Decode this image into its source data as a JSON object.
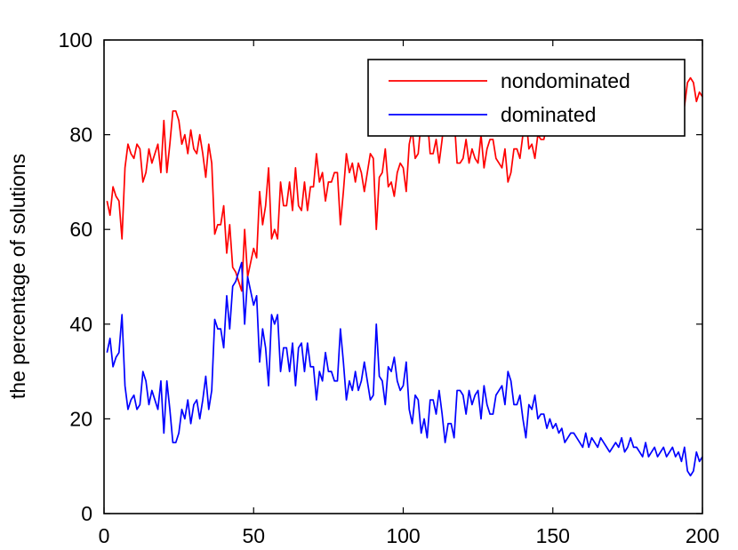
{
  "chart_data": {
    "type": "line",
    "title": "",
    "xlabel": "",
    "ylabel": "the percentage of solutions",
    "xlim": [
      0,
      200
    ],
    "ylim": [
      0,
      100
    ],
    "xticks": [
      0,
      50,
      100,
      150,
      200
    ],
    "yticks": [
      0,
      20,
      40,
      60,
      80,
      100
    ],
    "grid": false,
    "legend_position": "top-right",
    "series": [
      {
        "name": "nondominated",
        "color": "#ff0000",
        "x": [
          1,
          2,
          3,
          4,
          5,
          6,
          7,
          8,
          9,
          10,
          11,
          12,
          13,
          14,
          15,
          16,
          17,
          18,
          19,
          20,
          21,
          22,
          23,
          24,
          25,
          26,
          27,
          28,
          29,
          30,
          31,
          32,
          33,
          34,
          35,
          36,
          37,
          38,
          39,
          40,
          41,
          42,
          43,
          44,
          45,
          46,
          47,
          48,
          49,
          50,
          51,
          52,
          53,
          54,
          55,
          56,
          57,
          58,
          59,
          60,
          61,
          62,
          63,
          64,
          65,
          66,
          67,
          68,
          69,
          70,
          71,
          72,
          73,
          74,
          75,
          76,
          77,
          78,
          79,
          80,
          81,
          82,
          83,
          84,
          85,
          86,
          87,
          88,
          89,
          90,
          91,
          92,
          93,
          94,
          95,
          96,
          97,
          98,
          99,
          100,
          101,
          102,
          103,
          104,
          105,
          106,
          107,
          108,
          109,
          110,
          111,
          112,
          113,
          114,
          115,
          116,
          117,
          118,
          119,
          120,
          121,
          122,
          123,
          124,
          125,
          126,
          127,
          128,
          129,
          130,
          131,
          132,
          133,
          134,
          135,
          136,
          137,
          138,
          139,
          140,
          141,
          142,
          143,
          144,
          145,
          146,
          147,
          148,
          149,
          150,
          151,
          152,
          153,
          154,
          155,
          156,
          157,
          158,
          159,
          160,
          161,
          162,
          163,
          164,
          165,
          166,
          167,
          168,
          169,
          170,
          171,
          172,
          173,
          174,
          175,
          176,
          177,
          178,
          179,
          180,
          181,
          182,
          183,
          184,
          185,
          186,
          187,
          188,
          189,
          190,
          191,
          192,
          193,
          194,
          195,
          196,
          197,
          198,
          199,
          200
        ],
        "values": [
          66,
          63,
          69,
          67,
          66,
          58,
          73,
          78,
          76,
          75,
          78,
          77,
          70,
          72,
          77,
          74,
          76,
          78,
          72,
          83,
          72,
          78,
          85,
          85,
          83,
          78,
          80,
          76,
          81,
          77,
          76,
          80,
          76,
          71,
          78,
          74,
          59,
          61,
          61,
          65,
          55,
          61,
          52,
          51,
          49,
          47,
          60,
          50,
          53,
          56,
          54,
          68,
          61,
          65,
          73,
          58,
          60,
          58,
          70,
          65,
          65,
          70,
          64,
          73,
          65,
          64,
          70,
          64,
          69,
          69,
          76,
          70,
          72,
          66,
          70,
          70,
          72,
          72,
          61,
          68,
          76,
          72,
          74,
          70,
          74,
          72,
          68,
          72,
          76,
          75,
          60,
          71,
          72,
          77,
          69,
          70,
          67,
          72,
          74,
          73,
          68,
          78,
          81,
          75,
          76,
          83,
          80,
          84,
          76,
          76,
          79,
          74,
          79,
          85,
          81,
          81,
          84,
          74,
          74,
          75,
          79,
          74,
          77,
          75,
          74,
          80,
          73,
          77,
          79,
          79,
          75,
          74,
          73,
          77,
          70,
          72,
          77,
          77,
          75,
          80,
          84,
          77,
          78,
          75,
          80,
          79,
          79,
          82,
          80,
          82,
          81,
          83,
          82,
          85,
          84,
          83,
          83,
          84,
          85,
          86,
          83,
          86,
          84,
          85,
          86,
          84,
          85,
          86,
          87,
          86,
          85,
          86,
          84,
          87,
          86,
          84,
          86,
          86,
          87,
          88,
          85,
          88,
          87,
          86,
          88,
          87,
          86,
          88,
          87,
          86,
          88,
          87,
          89,
          86,
          91,
          92,
          91,
          87,
          89,
          88
        ]
      },
      {
        "name": "dominated",
        "color": "#0000ff",
        "x": [
          1,
          2,
          3,
          4,
          5,
          6,
          7,
          8,
          9,
          10,
          11,
          12,
          13,
          14,
          15,
          16,
          17,
          18,
          19,
          20,
          21,
          22,
          23,
          24,
          25,
          26,
          27,
          28,
          29,
          30,
          31,
          32,
          33,
          34,
          35,
          36,
          37,
          38,
          39,
          40,
          41,
          42,
          43,
          44,
          45,
          46,
          47,
          48,
          49,
          50,
          51,
          52,
          53,
          54,
          55,
          56,
          57,
          58,
          59,
          60,
          61,
          62,
          63,
          64,
          65,
          66,
          67,
          68,
          69,
          70,
          71,
          72,
          73,
          74,
          75,
          76,
          77,
          78,
          79,
          80,
          81,
          82,
          83,
          84,
          85,
          86,
          87,
          88,
          89,
          90,
          91,
          92,
          93,
          94,
          95,
          96,
          97,
          98,
          99,
          100,
          101,
          102,
          103,
          104,
          105,
          106,
          107,
          108,
          109,
          110,
          111,
          112,
          113,
          114,
          115,
          116,
          117,
          118,
          119,
          120,
          121,
          122,
          123,
          124,
          125,
          126,
          127,
          128,
          129,
          130,
          131,
          132,
          133,
          134,
          135,
          136,
          137,
          138,
          139,
          140,
          141,
          142,
          143,
          144,
          145,
          146,
          147,
          148,
          149,
          150,
          151,
          152,
          153,
          154,
          155,
          156,
          157,
          158,
          159,
          160,
          161,
          162,
          163,
          164,
          165,
          166,
          167,
          168,
          169,
          170,
          171,
          172,
          173,
          174,
          175,
          176,
          177,
          178,
          179,
          180,
          181,
          182,
          183,
          184,
          185,
          186,
          187,
          188,
          189,
          190,
          191,
          192,
          193,
          194,
          195,
          196,
          197,
          198,
          199,
          200
        ],
        "values": [
          34,
          37,
          31,
          33,
          34,
          42,
          27,
          22,
          24,
          25,
          22,
          23,
          30,
          28,
          23,
          26,
          24,
          22,
          28,
          17,
          28,
          22,
          15,
          15,
          17,
          22,
          20,
          24,
          19,
          23,
          24,
          20,
          24,
          29,
          22,
          26,
          41,
          39,
          39,
          35,
          46,
          39,
          48,
          49,
          51,
          53,
          40,
          50,
          47,
          44,
          46,
          32,
          39,
          35,
          27,
          42,
          40,
          42,
          30,
          35,
          35,
          30,
          36,
          27,
          35,
          36,
          30,
          36,
          31,
          31,
          24,
          30,
          28,
          34,
          30,
          30,
          28,
          28,
          39,
          32,
          24,
          28,
          26,
          30,
          26,
          28,
          32,
          28,
          24,
          25,
          40,
          29,
          28,
          23,
          31,
          30,
          33,
          28,
          26,
          27,
          32,
          22,
          19,
          25,
          24,
          17,
          20,
          16,
          24,
          24,
          21,
          26,
          21,
          15,
          19,
          19,
          16,
          26,
          26,
          25,
          21,
          26,
          23,
          25,
          26,
          20,
          27,
          23,
          21,
          21,
          25,
          26,
          27,
          23,
          30,
          28,
          23,
          23,
          25,
          20,
          16,
          23,
          22,
          25,
          20,
          21,
          21,
          18,
          20,
          18,
          19,
          17,
          18,
          15,
          16,
          17,
          17,
          16,
          15,
          14,
          17,
          14,
          16,
          15,
          14,
          16,
          15,
          14,
          13,
          14,
          15,
          14,
          16,
          13,
          14,
          16,
          14,
          14,
          13,
          12,
          15,
          12,
          13,
          14,
          12,
          13,
          14,
          12,
          13,
          14,
          12,
          13,
          11,
          14,
          9,
          8,
          9,
          13,
          11,
          12
        ]
      }
    ]
  }
}
